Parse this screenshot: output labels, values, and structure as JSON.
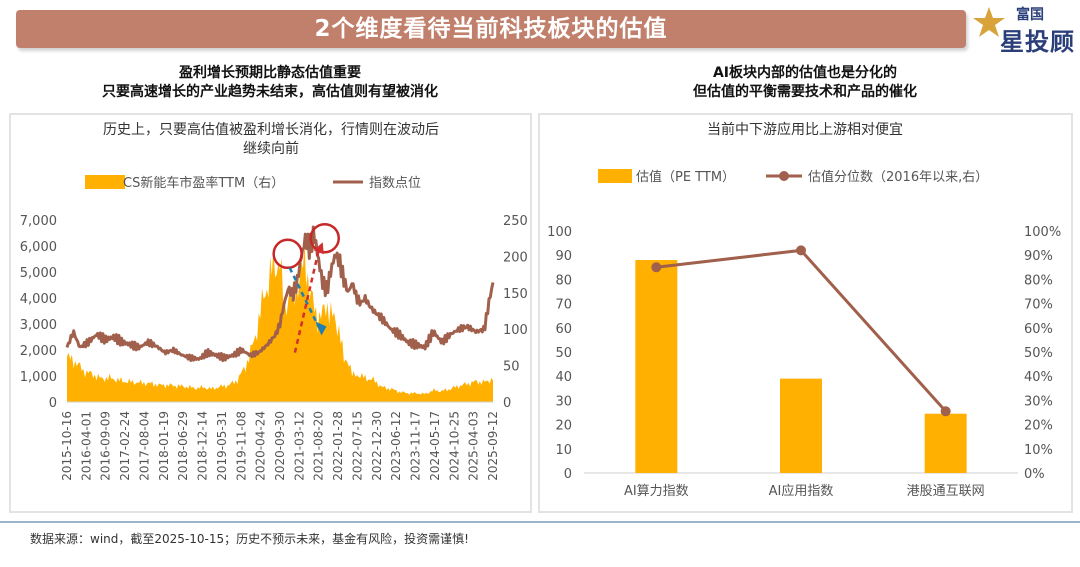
{
  "header": {
    "title": "2个维度看待当前科技板块的估值"
  },
  "logo": {
    "top": "富国",
    "main": "星投顾"
  },
  "left": {
    "heading_line1": "盈利增长预期比静态估值重要",
    "heading_line2": "只要高速增长的产业趋势未结束，高估值则有望被消化"
  },
  "right": {
    "heading_line1": "AI板块内部的估值也是分化的",
    "heading_line2": "但估值的平衡需要技术和产品的催化"
  },
  "footnote": "数据来源：wind，截至2025-10-15；历史不预示未来，基金有风险，投资需谨慎!",
  "colors": {
    "gold": "#ffb000",
    "brown": "#a0604b",
    "banner": "#c0806b",
    "red_circle": "#c62828",
    "blue_arrow": "#1f7fb0"
  },
  "chart_data": [
    {
      "type": "area",
      "title_line1": "历史上，只要高估值被盈利增长消化，行情则在波动后",
      "title_line2": "继续向前",
      "legend": [
        "CS新能车市盈率TTM（右）",
        "指数点位"
      ],
      "y_left": {
        "range": [
          0,
          7000
        ],
        "ticks": [
          "0",
          "1,000",
          "2,000",
          "3,000",
          "4,000",
          "5,000",
          "6,000",
          "7,000"
        ]
      },
      "y_right": {
        "range": [
          0,
          250
        ],
        "ticks": [
          "0",
          "50",
          "100",
          "150",
          "200",
          "250"
        ]
      },
      "x_ticks": [
        "2015-10-16",
        "2016-04-01",
        "2016-09-09",
        "2017-02-24",
        "2017-08-04",
        "2018-01-19",
        "2018-06-29",
        "2018-12-14",
        "2019-05-31",
        "2019-11-08",
        "2020-04-24",
        "2020-09-30",
        "2021-03-12",
        "2021-08-20",
        "2022-01-28",
        "2022-07-15",
        "2022-12-30",
        "2023-06-12",
        "2023-11-17",
        "2024-05-17",
        "2024-10-25",
        "2025-04-03",
        "2025-09-12"
      ],
      "series": [
        {
          "name": "CS新能车市盈率TTM（右）",
          "axis": "right",
          "kind": "area",
          "t": [
            0.0,
            0.02,
            0.04,
            0.06,
            0.08,
            0.1,
            0.12,
            0.14,
            0.16,
            0.18,
            0.2,
            0.22,
            0.24,
            0.26,
            0.28,
            0.3,
            0.32,
            0.34,
            0.36,
            0.38,
            0.4,
            0.42,
            0.44,
            0.46,
            0.48,
            0.5,
            0.51,
            0.52,
            0.53,
            0.54,
            0.55,
            0.56,
            0.57,
            0.58,
            0.59,
            0.6,
            0.61,
            0.62,
            0.63,
            0.64,
            0.65,
            0.66,
            0.67,
            0.68,
            0.7,
            0.72,
            0.74,
            0.76,
            0.78,
            0.8,
            0.82,
            0.84,
            0.86,
            0.88,
            0.9,
            0.92,
            0.94,
            0.96,
            0.98,
            1.0
          ],
          "v": [
            62,
            55,
            42,
            38,
            32,
            33,
            30,
            28,
            27,
            26,
            25,
            23,
            23,
            22,
            21,
            19,
            20,
            18,
            21,
            23,
            30,
            50,
            85,
            140,
            180,
            195,
            120,
            150,
            140,
            160,
            175,
            200,
            150,
            130,
            115,
            120,
            135,
            120,
            110,
            100,
            55,
            60,
            35,
            38,
            33,
            30,
            20,
            18,
            14,
            12,
            12,
            11,
            16,
            15,
            18,
            22,
            25,
            28,
            27,
            32
          ]
        },
        {
          "name": "指数点位",
          "axis": "left",
          "kind": "line",
          "t": [
            0.0,
            0.015,
            0.03,
            0.05,
            0.07,
            0.09,
            0.11,
            0.13,
            0.15,
            0.17,
            0.19,
            0.21,
            0.23,
            0.25,
            0.27,
            0.29,
            0.31,
            0.33,
            0.35,
            0.37,
            0.39,
            0.41,
            0.43,
            0.45,
            0.47,
            0.49,
            0.5,
            0.51,
            0.52,
            0.53,
            0.54,
            0.55,
            0.56,
            0.57,
            0.58,
            0.59,
            0.6,
            0.61,
            0.62,
            0.63,
            0.64,
            0.65,
            0.66,
            0.67,
            0.68,
            0.69,
            0.7,
            0.71,
            0.72,
            0.74,
            0.76,
            0.78,
            0.8,
            0.82,
            0.84,
            0.86,
            0.88,
            0.9,
            0.92,
            0.94,
            0.96,
            0.98,
            0.99,
            1.0
          ],
          "v": [
            2100,
            2700,
            2100,
            2300,
            2600,
            2400,
            2500,
            2300,
            2200,
            2100,
            2300,
            2150,
            1900,
            2000,
            1800,
            1700,
            1650,
            1900,
            1800,
            1700,
            1800,
            2000,
            1800,
            1900,
            2200,
            2600,
            3000,
            3800,
            4400,
            4100,
            4600,
            5600,
            6300,
            5900,
            6500,
            5500,
            4600,
            4300,
            5100,
            5700,
            5400,
            4700,
            4200,
            4600,
            4000,
            3800,
            4000,
            3700,
            3500,
            3200,
            2800,
            2600,
            2300,
            2200,
            2100,
            2700,
            2300,
            2600,
            2800,
            2900,
            2700,
            2800,
            3800,
            4600
          ]
        }
      ]
    },
    {
      "type": "bar",
      "title": "当前中下游应用比上游相对便宜",
      "categories": [
        "AI算力指数",
        "AI应用指数",
        "港股通互联网"
      ],
      "y_left": {
        "range": [
          0,
          100
        ],
        "ticks": [
          "0",
          "10",
          "20",
          "30",
          "40",
          "50",
          "60",
          "70",
          "80",
          "90",
          "100"
        ]
      },
      "y_right": {
        "range": [
          0,
          100
        ],
        "ticks": [
          "0%",
          "10%",
          "20%",
          "30%",
          "40%",
          "50%",
          "60%",
          "70%",
          "80%",
          "90%",
          "100%"
        ]
      },
      "series": [
        {
          "name": "估值（PE TTM）",
          "axis": "left",
          "kind": "bar",
          "values": [
            88,
            39,
            24.5
          ]
        },
        {
          "name": "估值分位数（2016年以来,右）",
          "axis": "right",
          "kind": "line",
          "values": [
            85,
            92,
            25.5
          ]
        }
      ]
    }
  ]
}
